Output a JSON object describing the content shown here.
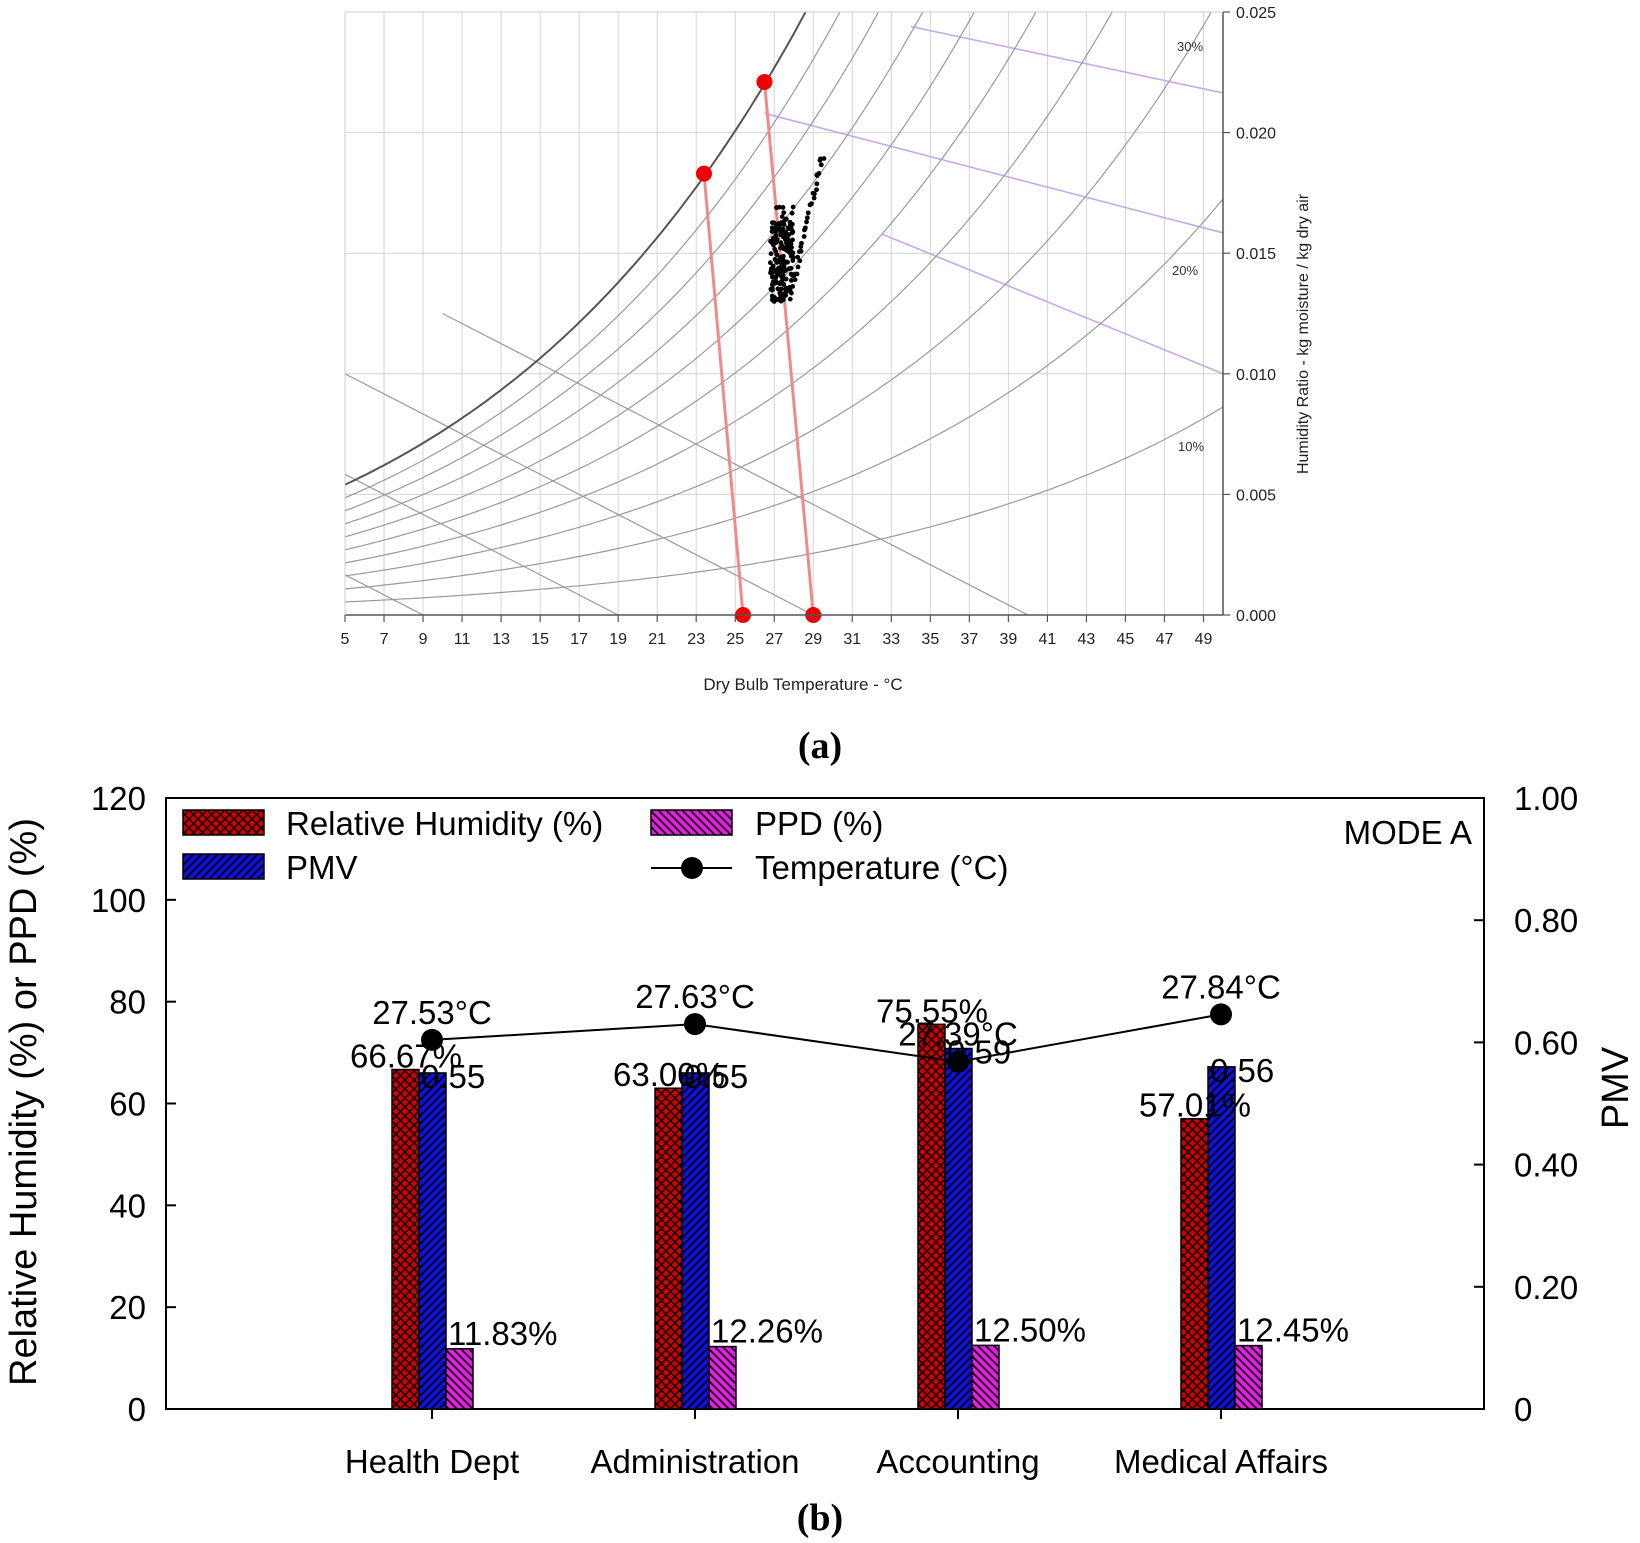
{
  "colors": {
    "rh": "#cc0000",
    "pmv": "#1010e0",
    "ppd": "#e020e0",
    "saturation": "#555555",
    "grid": "#d4d4d4",
    "rh_curves": "#9a9a9a",
    "enthalpy": "#c8a8e8",
    "process": "#f08a8a",
    "state_point": "#ee0000",
    "samples": "#000000",
    "temperature": "#000000"
  },
  "chart_data": [
    {
      "id": "a",
      "type": "scatter",
      "subtype": "psychrometric",
      "panel_label": "(a)",
      "xlabel": "Dry Bulb Temperature - °C",
      "ylabel": "Humidity Ratio - kg moisture / kg dry air",
      "xlim": [
        5,
        50
      ],
      "ylim": [
        0,
        0.025
      ],
      "x_ticks": [
        "5",
        "7",
        "9",
        "11",
        "13",
        "15",
        "17",
        "19",
        "21",
        "23",
        "25",
        "27",
        "29",
        "31",
        "33",
        "35",
        "37",
        "39",
        "41",
        "43",
        "45",
        "47",
        "49"
      ],
      "y_ticks": [
        "0.000",
        "0.005",
        "0.010",
        "0.015",
        "0.020",
        "0.025"
      ],
      "rh_curve_labels": [
        "30%",
        "20%",
        "10%"
      ],
      "state_points": [
        {
          "x": 23.4,
          "y": 0.0183
        },
        {
          "x": 26.5,
          "y": 0.0221
        },
        {
          "x": 25.4,
          "y": 0.0
        },
        {
          "x": 29.0,
          "y": 0.0
        }
      ],
      "process_lines": [
        [
          0,
          2
        ],
        [
          1,
          3
        ]
      ],
      "sample_cluster": {
        "x_range": [
          26.8,
          29.5
        ],
        "y_range": [
          0.0128,
          0.0191
        ]
      }
    },
    {
      "id": "b",
      "type": "bar",
      "panel_label": "(b)",
      "mode_label": "MODE A",
      "ylabel": "Relative Humidity (%) or PPD (%)",
      "y2label": "PMV",
      "ylim": [
        0,
        120
      ],
      "y2lim": [
        0,
        1.0
      ],
      "y_ticks": [
        "0",
        "20",
        "40",
        "60",
        "80",
        "100",
        "120"
      ],
      "y2_ticks": [
        "0",
        "0.20",
        "0.40",
        "0.60",
        "0.80",
        "1.00"
      ],
      "categories": [
        "Health Dept",
        "Administration",
        "Accounting",
        "Medical Affairs"
      ],
      "legend": {
        "rh": "Relative Humidity (%)",
        "ppd": "PPD (%)",
        "pmv": "PMV",
        "temp": "Temperature (°C)"
      },
      "series": [
        {
          "name": "Relative Humidity (%)",
          "axis": "left",
          "values": [
            66.67,
            63.0,
            75.55,
            57.01
          ],
          "labels": [
            "66.67%",
            "63.00%",
            "75.55%",
            "57.01%"
          ]
        },
        {
          "name": "PMV",
          "axis": "right",
          "values": [
            0.55,
            0.55,
            0.59,
            0.56
          ],
          "labels": [
            "0.55",
            "0.55",
            "0.59",
            "0.56"
          ]
        },
        {
          "name": "PPD (%)",
          "axis": "left",
          "values": [
            11.83,
            12.26,
            12.5,
            12.45
          ],
          "labels": [
            "11.83%",
            "12.26%",
            "12.50%",
            "12.45%"
          ]
        },
        {
          "name": "Temperature (°C)",
          "type": "line",
          "axis": "left",
          "values": [
            27.53,
            27.63,
            27.39,
            27.84
          ],
          "plotted_left_axis": [
            72.5,
            75.6,
            68.2,
            77.5
          ],
          "labels": [
            "27.53°C",
            "27.63°C",
            "27.39°C",
            "27.84°C"
          ]
        }
      ]
    }
  ]
}
